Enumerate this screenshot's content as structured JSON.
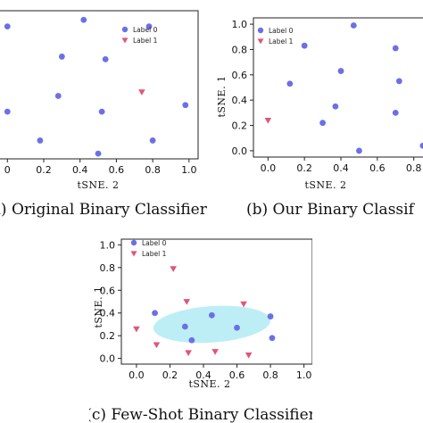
{
  "colors": {
    "label0": "#6b70e6",
    "label1": "#e0557a",
    "ellipse_fill": "#bdeef6"
  },
  "chart_data": [
    {
      "type": "scatter",
      "caption": "(a) Original Binary Classifier",
      "xlabel": "tSNE. 2",
      "ylabel": "",
      "xlim": [
        -0.08,
        1.05
      ],
      "ylim": [
        -0.06,
        1.07
      ],
      "xticks": [
        0.0,
        0.2,
        0.4,
        0.6,
        0.8,
        1.0
      ],
      "xtick_labels": [
        "0",
        "0.2",
        "0.4",
        "0.6",
        "0.8",
        "1.0"
      ],
      "yticks": [],
      "ytick_labels": [],
      "legend": {
        "placement": "top-right",
        "entries": [
          "Label 0",
          "Label 1"
        ]
      },
      "series": [
        {
          "name": "Label 0",
          "marker": "circle",
          "x": [
            0.0,
            0.42,
            0.78,
            0.3,
            0.54,
            0.28,
            0.0,
            0.52,
            0.98,
            0.18,
            0.8,
            0.5
          ],
          "y": [
            0.95,
            1.0,
            0.95,
            0.72,
            0.7,
            0.42,
            0.3,
            0.3,
            0.35,
            0.08,
            0.08,
            -0.02
          ]
        },
        {
          "name": "Label 1",
          "marker": "triangle",
          "x": [
            0.74
          ],
          "y": [
            0.45
          ]
        }
      ]
    },
    {
      "type": "scatter",
      "caption": "(b) Our Binary Classif",
      "xlabel": "tSNE. 2",
      "ylabel": "tSNE. 1",
      "xlim": [
        -0.08,
        0.88
      ],
      "ylim": [
        -0.05,
        1.05
      ],
      "xticks": [
        0.0,
        0.2,
        0.4,
        0.6,
        0.8
      ],
      "xtick_labels": [
        "0.0",
        "0.2",
        "0.4",
        "0.6",
        "0.8"
      ],
      "yticks": [
        0.0,
        0.2,
        0.4,
        0.6,
        0.8,
        1.0
      ],
      "ytick_labels": [
        "0.0",
        "0.2",
        "0.4",
        "0.6",
        "0.8",
        "1.0"
      ],
      "legend": {
        "placement": "top-left",
        "entries": [
          "Label 0",
          "Label 1"
        ]
      },
      "series": [
        {
          "name": "Label 0",
          "marker": "circle",
          "x": [
            0.47,
            0.2,
            0.7,
            0.12,
            0.4,
            0.72,
            0.3,
            0.37,
            0.7,
            0.5,
            0.85
          ],
          "y": [
            0.99,
            0.83,
            0.81,
            0.53,
            0.63,
            0.55,
            0.22,
            0.35,
            0.3,
            0.0,
            0.04
          ]
        },
        {
          "name": "Label 1",
          "marker": "triangle",
          "x": [
            0.0
          ],
          "y": [
            0.24
          ]
        }
      ]
    },
    {
      "type": "scatter",
      "caption": "(c) Few-Shot Binary Classifier",
      "xlabel": "tSNE. 2",
      "ylabel": "tSNE. 1",
      "xlim": [
        -0.09,
        1.05
      ],
      "ylim": [
        -0.05,
        1.05
      ],
      "xticks": [
        0.0,
        0.2,
        0.4,
        0.6,
        0.8,
        1.0
      ],
      "xtick_labels": [
        "0.0",
        "0.2",
        "0.4",
        "0.6",
        "0.8",
        "1.0"
      ],
      "yticks": [
        0.0,
        0.2,
        0.4,
        0.6,
        0.8,
        1.0
      ],
      "ytick_labels": [
        "0.0",
        "0.2",
        "0.4",
        "0.6",
        "0.8",
        "1.0"
      ],
      "legend": {
        "placement": "top-left",
        "entries": [
          "Label 0",
          "Label 1"
        ]
      },
      "cluster_region": {
        "cx": 0.45,
        "cy": 0.3,
        "rx": 0.35,
        "ry": 0.16
      },
      "series": [
        {
          "name": "Label 0",
          "marker": "circle",
          "x": [
            0.11,
            0.29,
            0.45,
            0.6,
            0.8,
            0.33,
            0.81
          ],
          "y": [
            0.4,
            0.28,
            0.38,
            0.27,
            0.37,
            0.16,
            0.18
          ]
        },
        {
          "name": "Label 1",
          "marker": "triangle",
          "x": [
            0.22,
            0.3,
            0.64,
            0.0,
            0.12,
            0.31,
            0.47,
            0.67
          ],
          "y": [
            0.79,
            0.5,
            0.48,
            0.26,
            0.12,
            0.05,
            0.06,
            0.03
          ]
        }
      ]
    }
  ]
}
